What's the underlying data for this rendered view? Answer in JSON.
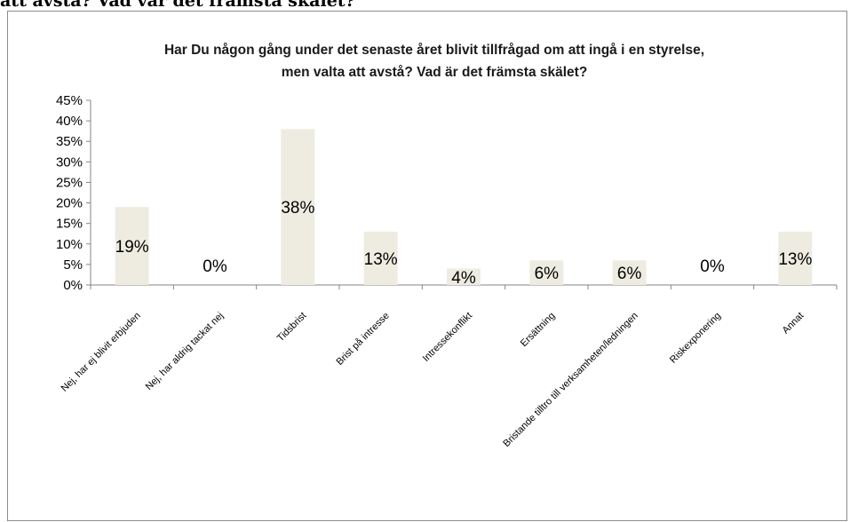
{
  "page": {
    "heading": "att avstå? Vad var det främsta skälet?"
  },
  "chart_data": {
    "type": "bar",
    "title": "Har Du någon gång under det senaste året blivit tillfrågad om att ingå i en styrelse,",
    "title_line2": "men valta att avstå? Vad är det främsta skälet?",
    "categories": [
      "Nej,  har ej blivit erbjuden",
      "Nej, har aldrig tackat nej",
      "Tidsbrist",
      "Brist på intresse",
      "Intressekonflikt",
      "Ersättning",
      "Bristande tilltro till verksamheten/ledningen",
      "Riskexponering",
      "Annat"
    ],
    "values": [
      19,
      0,
      38,
      13,
      4,
      6,
      6,
      0,
      13
    ],
    "value_labels": [
      "19%",
      "0%",
      "38%",
      "13%",
      "4%",
      "6%",
      "6%",
      "0%",
      "13%"
    ],
    "y_ticks": [
      "0%",
      "5%",
      "10%",
      "15%",
      "20%",
      "25%",
      "30%",
      "35%",
      "40%",
      "45%"
    ],
    "ylim": [
      0,
      45
    ],
    "xlabel": "",
    "ylabel": "",
    "grid": false,
    "legend": "none",
    "bar_color": "#eeece1"
  }
}
